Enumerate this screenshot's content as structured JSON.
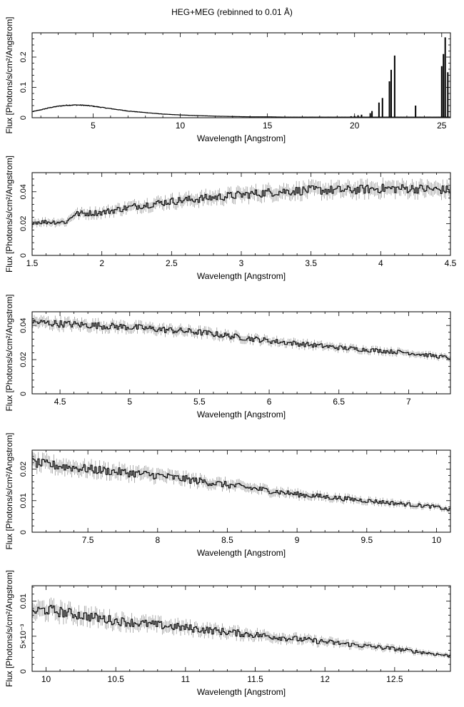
{
  "figure": {
    "title": "HEG+MEG (rebinned to 0.01 Å)"
  },
  "chart_data": [
    {
      "type": "line",
      "xlabel": "Wavelength [Angstrom]",
      "ylabel": "Flux [Photons/s/cm²/Angstrom]",
      "xlim": [
        1.5,
        25.5
      ],
      "ylim": [
        0,
        0.28
      ],
      "xticks": [
        5,
        10,
        15,
        20,
        25
      ],
      "xtick_labels": [
        "5",
        "10",
        "15",
        "20",
        "25"
      ],
      "yticks": [
        0,
        0.1,
        0.2
      ],
      "ytick_labels": [
        "0",
        "0.1",
        "0.2"
      ],
      "grid": false,
      "series": [
        {
          "x": [
            1.5,
            2.0,
            2.5,
            3.0,
            3.5,
            4.0,
            4.5,
            5.0,
            6.0,
            7.0,
            8.0,
            9.0,
            10.0,
            11.0,
            12.0,
            13.0,
            14.0,
            15.0,
            16.0,
            17.0,
            18.0,
            19.0,
            20.0,
            21.0,
            22.0,
            23.0,
            24.0,
            25.0,
            25.5
          ],
          "y": [
            0.02,
            0.026,
            0.033,
            0.038,
            0.041,
            0.042,
            0.041,
            0.038,
            0.03,
            0.022,
            0.017,
            0.012,
            0.009,
            0.007,
            0.005,
            0.004,
            0.003,
            0.003,
            0.002,
            0.002,
            0.002,
            0.002,
            0.002,
            0.002,
            0.002,
            0.002,
            0.002,
            0.002,
            0.002
          ]
        }
      ],
      "lines": {
        "x": [
          19.8,
          20.0,
          20.2,
          20.4,
          20.9,
          21.0,
          21.4,
          21.6,
          22.0,
          22.1,
          22.3,
          23.5,
          25.0,
          25.1,
          25.2,
          25.35
        ],
        "y": [
          0.005,
          0.006,
          0.008,
          0.01,
          0.015,
          0.022,
          0.05,
          0.065,
          0.12,
          0.158,
          0.205,
          0.04,
          0.17,
          0.21,
          0.265,
          0.15
        ]
      }
    },
    {
      "type": "line",
      "xlabel": "Wavelength [Angstrom]",
      "ylabel": "Flux [Photons/s/cm²/Angstrom]",
      "xlim": [
        1.5,
        4.5
      ],
      "ylim": [
        0,
        0.052
      ],
      "xticks": [
        1.5,
        2,
        2.5,
        3,
        3.5,
        4,
        4.5
      ],
      "xtick_labels": [
        "1.5",
        "2",
        "2.5",
        "3",
        "3.5",
        "4",
        "4.5"
      ],
      "yticks": [
        0,
        0.02,
        0.04
      ],
      "ytick_labels": [
        "0",
        "0.02",
        "0.04"
      ],
      "grid": false,
      "series": [
        {
          "x": [
            1.5,
            1.75,
            1.8,
            2.0,
            2.25,
            2.5,
            2.75,
            3.0,
            3.25,
            3.5,
            3.75,
            4.0,
            4.25,
            4.5
          ],
          "y": [
            0.021,
            0.021,
            0.026,
            0.027,
            0.031,
            0.034,
            0.036,
            0.038,
            0.04,
            0.041,
            0.041,
            0.042,
            0.042,
            0.041
          ]
        }
      ]
    },
    {
      "type": "line",
      "xlabel": "Wavelength [Angstrom]",
      "ylabel": "Flux [Photons/s/cm²/Angstrom]",
      "xlim": [
        4.3,
        7.3
      ],
      "ylim": [
        0,
        0.048
      ],
      "xticks": [
        4.5,
        5,
        5.5,
        6,
        6.5,
        7
      ],
      "xtick_labels": [
        "4.5",
        "5",
        "5.5",
        "6",
        "6.5",
        "7"
      ],
      "yticks": [
        0,
        0.02,
        0.04
      ],
      "ytick_labels": [
        "0",
        "0.02",
        "0.04"
      ],
      "grid": false,
      "series": [
        {
          "x": [
            4.3,
            4.5,
            5.0,
            5.5,
            6.0,
            6.5,
            7.0,
            7.3
          ],
          "y": [
            0.042,
            0.041,
            0.039,
            0.036,
            0.031,
            0.027,
            0.024,
            0.021
          ]
        }
      ]
    },
    {
      "type": "line",
      "xlabel": "Wavelength [Angstrom]",
      "ylabel": "Flux [Photons/s/cm²/Angstrom]",
      "xlim": [
        7.1,
        10.1
      ],
      "ylim": [
        0,
        0.026
      ],
      "xticks": [
        7.5,
        8,
        8.5,
        9,
        9.5,
        10
      ],
      "xtick_labels": [
        "7.5",
        "8",
        "8.5",
        "9",
        "9.5",
        "10"
      ],
      "yticks": [
        0,
        0.01,
        0.02
      ],
      "ytick_labels": [
        "0",
        "0.01",
        "0.02"
      ],
      "grid": false,
      "series": [
        {
          "x": [
            7.1,
            7.5,
            8.0,
            8.5,
            9.0,
            9.5,
            10.0,
            10.1
          ],
          "y": [
            0.022,
            0.02,
            0.018,
            0.015,
            0.012,
            0.01,
            0.008,
            0.007
          ]
        }
      ]
    },
    {
      "type": "line",
      "xlabel": "Wavelength [Angstrom]",
      "ylabel": "Flux [Photons/s/cm²/Angstrom]",
      "xlim": [
        9.9,
        12.9
      ],
      "ylim": [
        0,
        0.0122
      ],
      "xticks": [
        10,
        10.5,
        11,
        11.5,
        12,
        12.5
      ],
      "xtick_labels": [
        "10",
        "10.5",
        "11",
        "11.5",
        "12",
        "12.5"
      ],
      "yticks": [
        0,
        0.005,
        0.01
      ],
      "ytick_labels": [
        "0",
        "5×10⁻³",
        "0.01"
      ],
      "grid": false,
      "series": [
        {
          "x": [
            9.9,
            10.0,
            10.5,
            11.0,
            11.5,
            12.0,
            12.5,
            12.9
          ],
          "y": [
            0.0085,
            0.0088,
            0.0072,
            0.0062,
            0.0052,
            0.0042,
            0.0032,
            0.0022
          ]
        }
      ]
    }
  ]
}
